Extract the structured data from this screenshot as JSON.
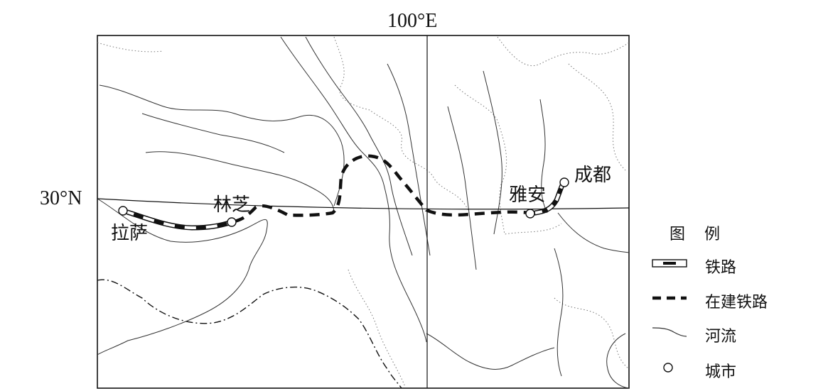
{
  "map": {
    "longitude_label": "100°E",
    "latitude_label": "30°N",
    "cities": [
      {
        "name": "拉萨"
      },
      {
        "name": "林芝"
      },
      {
        "name": "雅安"
      },
      {
        "name": "成都"
      }
    ]
  },
  "legend": {
    "title": "图 例",
    "items": [
      {
        "label": "铁路",
        "symbol": "railway"
      },
      {
        "label": "在建铁路",
        "symbol": "railway-under-construction"
      },
      {
        "label": "河流",
        "symbol": "river"
      },
      {
        "label": "城市",
        "symbol": "city"
      }
    ]
  },
  "colors": {
    "ink": "#111111",
    "border_gray": "#666666"
  }
}
